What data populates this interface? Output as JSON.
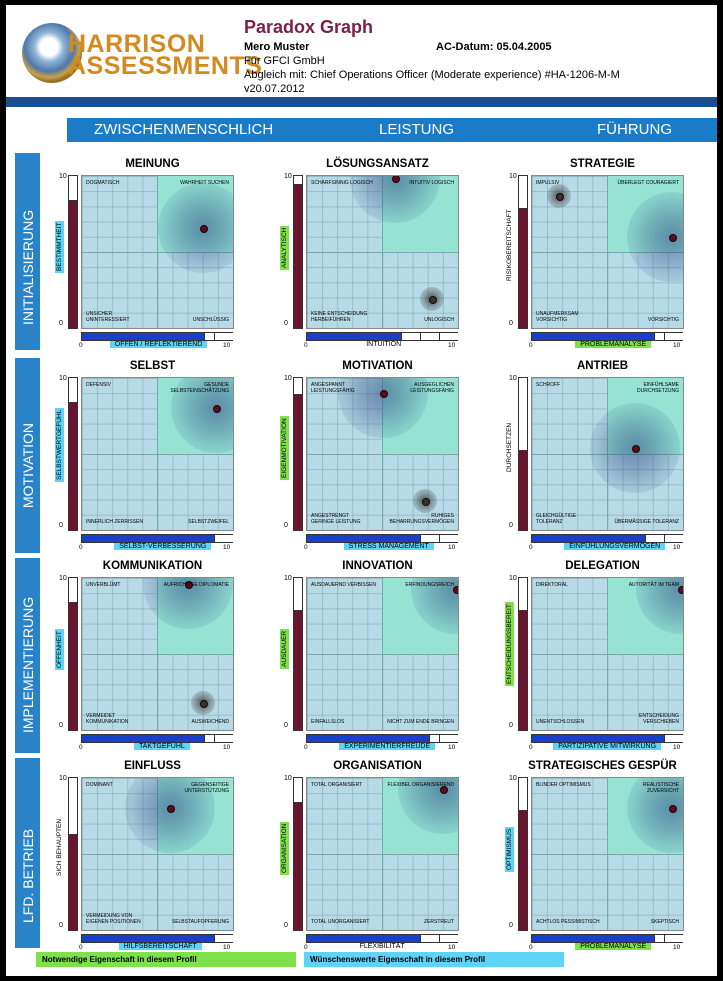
{
  "header": {
    "logo_line1": "HARRISON",
    "logo_line2": "ASSESSMENTS",
    "title": "Paradox Graph",
    "name": "Mero Muster",
    "ac_date": "AC-Datum: 05.04.2005",
    "company": "Für GFCI GmbH",
    "comparison": "Abgleich mit: Chief Operations Officer (Moderate experience) #HA-1206-M-M",
    "version": "v20.07.2012"
  },
  "columns": [
    "ZWISCHENMENSCHLICH",
    "LEISTUNG",
    "FÜHRUNG"
  ],
  "rows": [
    "INITIALISIERUNG",
    "MOTIVATION",
    "IMPLEMENTIERUNG",
    "LFD. BETRIEB"
  ],
  "colors": {
    "required": "#7ee04a",
    "desired": "#5fd3f5",
    "bar_dark": "#6a1430",
    "bar_blue": "#1a3fc9",
    "band": "#2a83c9"
  },
  "axis_min": "0",
  "axis_max": "10",
  "graphs": [
    {
      "title": "MEINUNG",
      "v": {
        "label": "BESTIMMTHEIT",
        "level": 0.85,
        "tag": "desired"
      },
      "h": {
        "label": "OFFEN / REFLEKTIEREND",
        "level": 0.8,
        "tag": "desired"
      },
      "tl": "DOGMATISCH",
      "tr": "WAHRHEIT SUCHEN",
      "bl": "UNSICHER\nUNINTERESSIERT",
      "br": "UNSCHLÜSSIG",
      "point": [
        8.0,
        6.6
      ],
      "glow": "big",
      "point2": null
    },
    {
      "title": "LÖSUNGSANSATZ",
      "v": {
        "label": "ANALYTISCH",
        "level": 0.95,
        "tag": "required"
      },
      "h": {
        "label": "INTUITION",
        "level": 0.6,
        "tag": "none"
      },
      "tl": "SCHARFSINNIG LOGISCH",
      "tr": "INTUITIV LOGISCH",
      "bl": "KEINE ENTSCHEIDUNG\nHERBEIFÜHREN",
      "br": "UNLOGISCH",
      "point": [
        5.8,
        9.9
      ],
      "glow": "big",
      "point2": [
        8.3,
        1.9
      ]
    },
    {
      "title": "STRATEGIE",
      "v": {
        "label": "RISIKOBEREITSCHAFT",
        "level": 0.78,
        "tag": "none"
      },
      "h": {
        "label": "PROBLEMANALYSE",
        "level": 0.8,
        "tag": "required"
      },
      "tl": "IMPULSIV",
      "tr": "ÜBERLEGT COURAGIERT",
      "bl": "UNAUFMERKSAM\nVORSICHTIG",
      "br": "VORSICHTIG",
      "point": [
        9.3,
        6.0
      ],
      "glow": "big",
      "point2": [
        1.8,
        8.7
      ]
    },
    {
      "title": "SELBST",
      "v": {
        "label": "SELBSTWERTGEFÜHL",
        "level": 0.85,
        "tag": "desired"
      },
      "h": {
        "label": "SELBST-VERBESSERUNG",
        "level": 0.85,
        "tag": "desired"
      },
      "tl": "DEFENSIV",
      "tr": "GESUNDE\nSELBSTEINSCHÄTZUNG",
      "bl": "INNERLICH ZERRISSEN",
      "br": "SELBSTZWEIFEL",
      "point": [
        8.9,
        8.0
      ],
      "glow": "big",
      "point2": null
    },
    {
      "title": "MOTIVATION",
      "v": {
        "label": "EIGENMOTIVATION",
        "level": 0.9,
        "tag": "required"
      },
      "h": {
        "label": "STRESS MANAGEMENT",
        "level": 0.75,
        "tag": "desired"
      },
      "tl": "ANGESPANNT\nLEISTUNGSFÄHIG",
      "tr": "AUSGEGLICHEN\nLEISTUNGSFÄHIG",
      "bl": "ANGESTRENGT\nGERINGE LEISTUNG",
      "br": "RUHIGES\nBEHARRUNGSVERMÖGEN",
      "point": [
        5.0,
        9.0
      ],
      "glow": "big",
      "point2": [
        7.8,
        1.9
      ]
    },
    {
      "title": "ANTRIEB",
      "v": {
        "label": "DURCHSETZEN",
        "level": 0.55,
        "tag": "none"
      },
      "h": {
        "label": "EINFÜHLUNGSVERMÖGEN",
        "level": 0.75,
        "tag": "desired"
      },
      "tl": "SCHROFF",
      "tr": "EINFÜHLSAME\nDURCHSETZUNG",
      "bl": "GLEICHGÜLTIGE\nTOLERANZ",
      "br": "ÜBERMÄSSIGE TOLERANZ",
      "point": [
        6.8,
        5.4
      ],
      "glow": "big",
      "point2": null
    },
    {
      "title": "KOMMUNIKATION",
      "v": {
        "label": "OFFENHEIT",
        "level": 0.85,
        "tag": "desired"
      },
      "h": {
        "label": "TAKTGEFÜHL",
        "level": 0.8,
        "tag": "desired"
      },
      "tl": "UNVERBLÜMT",
      "tr": "AUFRICHTIGE DIPLOMATIE",
      "bl": "VERMEIDET\nKOMMUNIKATION",
      "br": "AUSWEICHEND",
      "point": [
        7.0,
        9.6
      ],
      "glow": "big",
      "point2": [
        8.0,
        1.8
      ]
    },
    {
      "title": "INNOVATION",
      "v": {
        "label": "AUSDAUER",
        "level": 0.8,
        "tag": "required"
      },
      "h": {
        "label": "EXPERIMENTIERFREUDE",
        "level": 0.8,
        "tag": "desired"
      },
      "tl": "AUSDAUERND VERBISSEN",
      "tr": "ERFINDUNGSREICH",
      "bl": "EINFALLSLOS",
      "br": "NICHT ZUM ENDE BRINGEN",
      "point": [
        9.9,
        9.3
      ],
      "glow": "big",
      "point2": null
    },
    {
      "title": "DELEGATION",
      "v": {
        "label": "ENTSCHEIDUNGSBEREIT",
        "level": 0.8,
        "tag": "required"
      },
      "h": {
        "label": "PARTIZIPATIVE MITWIRKUNG",
        "level": 0.85,
        "tag": "desired"
      },
      "tl": "DIREKTORAL",
      "tr": "AUTORITÄT IM TEAM",
      "bl": "UNENTSCHLOSSEN",
      "br": "ENTSCHEIDUNG\nVERSCHIEBEN",
      "point": [
        9.9,
        9.3
      ],
      "glow": "big",
      "point2": null
    },
    {
      "title": "EINFLUSS",
      "v": {
        "label": "SICH BEHAUPTEN",
        "level": 0.65,
        "tag": "none"
      },
      "h": {
        "label": "HILFSBEREITSCHAFT",
        "level": 0.85,
        "tag": "desired"
      },
      "tl": "DOMINANT",
      "tr": "GEGENSEITIGE\nUNTERSTÜTZUNG",
      "bl": "VERMEIDUNG VON\nEIGENEN POSITIONEN",
      "br": "SELBSTAUFOPFERUNG",
      "point": [
        5.8,
        8.0
      ],
      "glow": "big",
      "point2": null
    },
    {
      "title": "ORGANISATION",
      "v": {
        "label": "ORGANISATION",
        "level": 0.85,
        "tag": "required"
      },
      "h": {
        "label": "FLEXIBILITÄT",
        "level": 0.75,
        "tag": "none"
      },
      "tl": "TOTAL ORGANISIERT",
      "tr": "FLEXIBEL ORGANISIEREND",
      "bl": "TOTAL UNORGANISIERT",
      "br": "ZERSTREUT",
      "point": [
        9.0,
        9.3
      ],
      "glow": "big",
      "point2": null
    },
    {
      "title": "STRATEGISCHES GESPÜR",
      "v": {
        "label": "OPTIMISMUS",
        "level": 0.8,
        "tag": "desired"
      },
      "h": {
        "label": "PROBLEMANALYSE",
        "level": 0.8,
        "tag": "required"
      },
      "tl": "BLINDER OPTIMISMUS",
      "tr": "REALISTISCHE\nZUVERSICHT",
      "bl": "ACHTLOS PESSIMISTISCH",
      "br": "SKEPTISCH",
      "point": [
        9.3,
        8.0
      ],
      "glow": "big",
      "point2": null
    }
  ],
  "legend": {
    "required": "Notwendige Eigenschaft in diesem Profil",
    "desired": "Wünschenswerte Eigenschaft in diesem Profil"
  }
}
